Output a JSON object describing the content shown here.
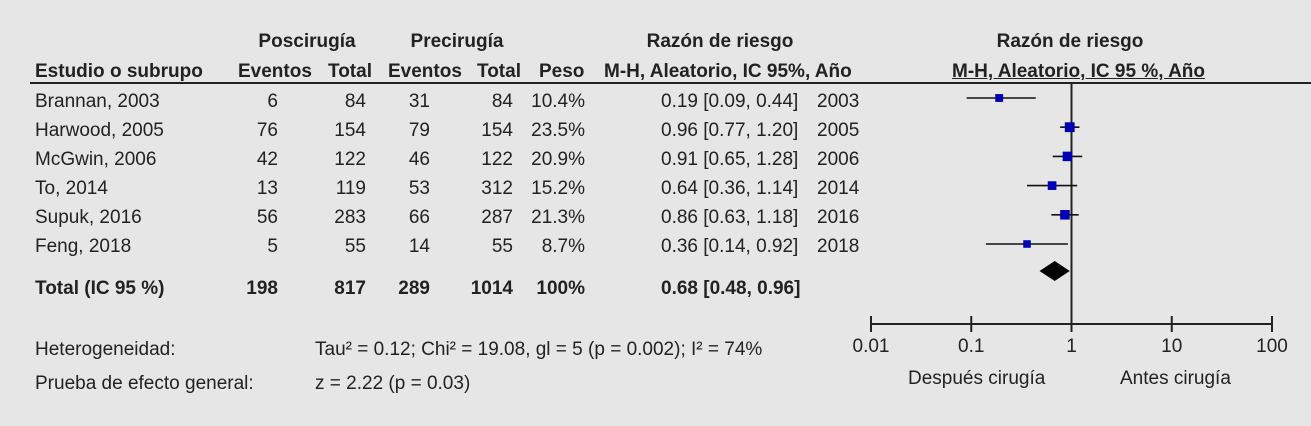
{
  "headers": {
    "group1": "Poscirugía",
    "group2": "Precirugía",
    "ratio_title": "Razón de riesgo",
    "plot_title": "Razón de riesgo",
    "study": "Estudio o subrupo",
    "events1": "Eventos",
    "total1": "Total",
    "events2": "Eventos",
    "total2": "Total",
    "weight": "Peso",
    "ratio_sub": "M-H, Aleatorio, IC 95%, Año",
    "plot_sub": "M-H, Aleatorio, IC 95 %, Año"
  },
  "rows": [
    {
      "study": "Brannan, 2003",
      "e1": "6",
      "t1": "84",
      "e2": "31",
      "t2": "84",
      "weight": "10.4%",
      "ci": "0.19 [0.09, 0.44]",
      "year": "2003"
    },
    {
      "study": "Harwood, 2005",
      "e1": "76",
      "t1": "154",
      "e2": "79",
      "t2": "154",
      "weight": "23.5%",
      "ci": "0.96 [0.77, 1.20]",
      "year": "2005"
    },
    {
      "study": "McGwin, 2006",
      "e1": "42",
      "t1": "122",
      "e2": "46",
      "t2": "122",
      "weight": "20.9%",
      "ci": "0.91 [0.65, 1.28]",
      "year": "2006"
    },
    {
      "study": "To, 2014",
      "e1": "13",
      "t1": "119",
      "e2": "53",
      "t2": "312",
      "weight": "15.2%",
      "ci": "0.64 [0.36, 1.14]",
      "year": "2014"
    },
    {
      "study": "Supuk, 2016",
      "e1": "56",
      "t1": "283",
      "e2": "66",
      "t2": "287",
      "weight": "21.3%",
      "ci": "0.86 [0.63, 1.18]",
      "year": "2016"
    },
    {
      "study": "Feng, 2018",
      "e1": "5",
      "t1": "55",
      "e2": "14",
      "t2": "55",
      "weight": "8.7%",
      "ci": "0.36 [0.14, 0.92]",
      "year": "2018"
    }
  ],
  "total": {
    "study": "Total (IC 95 %)",
    "e1": "198",
    "t1": "817",
    "e2": "289",
    "t2": "1014",
    "weight": "100%",
    "ci": "0.68 [0.48, 0.96]"
  },
  "heterogeneity": {
    "label": "Heterogeneidad:",
    "text": "Tau² = 0.12; Chi² = 19.08, gl = 5 (p = 0.002); I² = 74%"
  },
  "overall_effect": {
    "label": "Prueba de efecto general:",
    "text": "z = 2.22 (p = 0.03)"
  },
  "axis": {
    "left_label": "Después cirugía",
    "right_label": "Antes cirugía"
  },
  "chart_data": {
    "type": "forest",
    "scale": "log",
    "xlim": [
      0.01,
      100
    ],
    "ticks": [
      "0.01",
      "0.1",
      "1",
      "10",
      "100"
    ],
    "tick_values": [
      0.01,
      0.1,
      1,
      10,
      100
    ],
    "null_value": 1,
    "point_color": "#0000b4",
    "studies": [
      {
        "name": "Brannan, 2003",
        "rr": 0.19,
        "lo": 0.09,
        "hi": 0.44,
        "weight": 10.4
      },
      {
        "name": "Harwood, 2005",
        "rr": 0.96,
        "lo": 0.77,
        "hi": 1.2,
        "weight": 23.5
      },
      {
        "name": "McGwin, 2006",
        "rr": 0.91,
        "lo": 0.65,
        "hi": 1.28,
        "weight": 20.9
      },
      {
        "name": "To, 2014",
        "rr": 0.64,
        "lo": 0.36,
        "hi": 1.14,
        "weight": 15.2
      },
      {
        "name": "Supuk, 2016",
        "rr": 0.86,
        "lo": 0.63,
        "hi": 1.18,
        "weight": 21.3
      },
      {
        "name": "Feng, 2018",
        "rr": 0.36,
        "lo": 0.14,
        "hi": 0.92,
        "weight": 8.7
      }
    ],
    "summary": {
      "rr": 0.68,
      "lo": 0.48,
      "hi": 0.96
    }
  }
}
